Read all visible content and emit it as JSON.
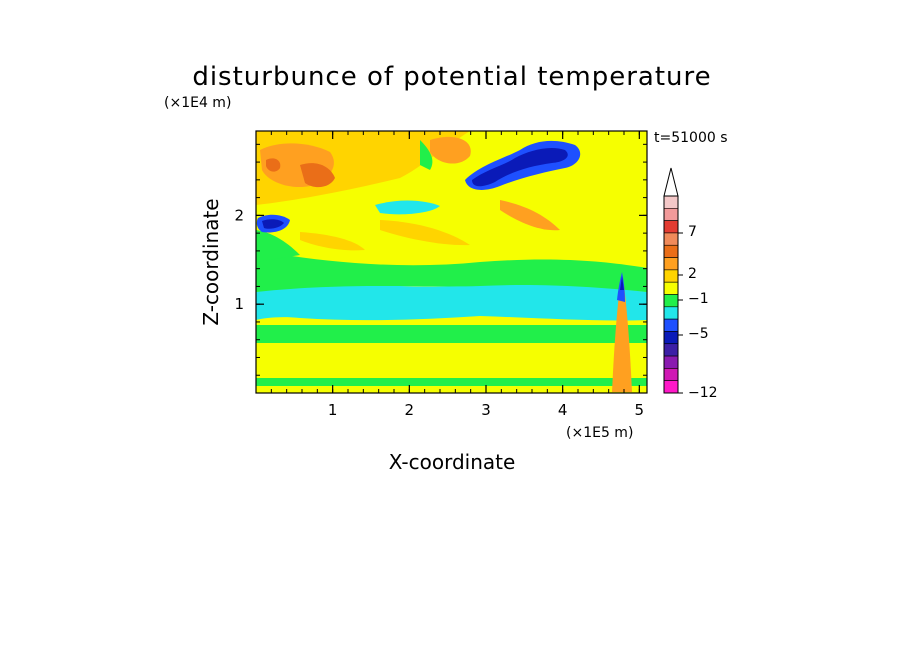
{
  "chart_data": {
    "type": "heatmap",
    "title": "disturbunce of potential temperature",
    "xlabel": "X-coordinate",
    "ylabel": "Z-coordinate",
    "x_unit": "(×1E5 m)",
    "y_unit": "(×1E4 m)",
    "time_label": "t=51000 s",
    "xlim": [
      0,
      5.1
    ],
    "ylim": [
      0,
      2.95
    ],
    "x_ticks": [
      "1",
      "2",
      "3",
      "4",
      "5"
    ],
    "y_ticks": [
      "1",
      "2"
    ],
    "colorbar": {
      "levels_top_to_bottom": [
        "#ffffff",
        "#f4c8c8",
        "#f29a9a",
        "#e43c32",
        "#f08a5a",
        "#ea6e18",
        "#ffa020",
        "#ffd400",
        "#f6ff00",
        "#21ef4a",
        "#22e6ea",
        "#1e50ff",
        "#0a1ab8",
        "#3c1fa6",
        "#8a1ab0",
        "#d018b4",
        "#ff18c8"
      ],
      "tick_labels": [
        "7",
        "2",
        "−1",
        "−5",
        "−12"
      ],
      "extend_top": true
    },
    "bands": [
      {
        "z": [
          0.0,
          0.2
        ],
        "level": "1"
      },
      {
        "z": [
          0.2,
          0.7
        ],
        "level": "2"
      },
      {
        "z": [
          0.7,
          0.9
        ],
        "level": "0"
      },
      {
        "z": [
          0.9,
          1.3
        ],
        "level": "-1"
      },
      {
        "z": [
          1.3,
          1.6
        ],
        "level": "0"
      },
      {
        "z": [
          1.6,
          2.2
        ],
        "level": "2"
      },
      {
        "z": [
          2.2,
          2.95
        ],
        "level": "3"
      }
    ],
    "features": [
      {
        "name": "cold core",
        "x": 0.2,
        "z": 1.9,
        "level": "-5"
      },
      {
        "name": "cold band",
        "x": [
          2.9,
          4.0
        ],
        "z": [
          2.3,
          2.8
        ],
        "level": "-5"
      },
      {
        "name": "warm region",
        "x": [
          0.0,
          1.5
        ],
        "z": [
          2.3,
          2.8
        ],
        "level": "5"
      },
      {
        "name": "narrow disturbance",
        "x": 4.75,
        "z": [
          0.0,
          1.35
        ],
        "level": "mixed"
      }
    ]
  }
}
